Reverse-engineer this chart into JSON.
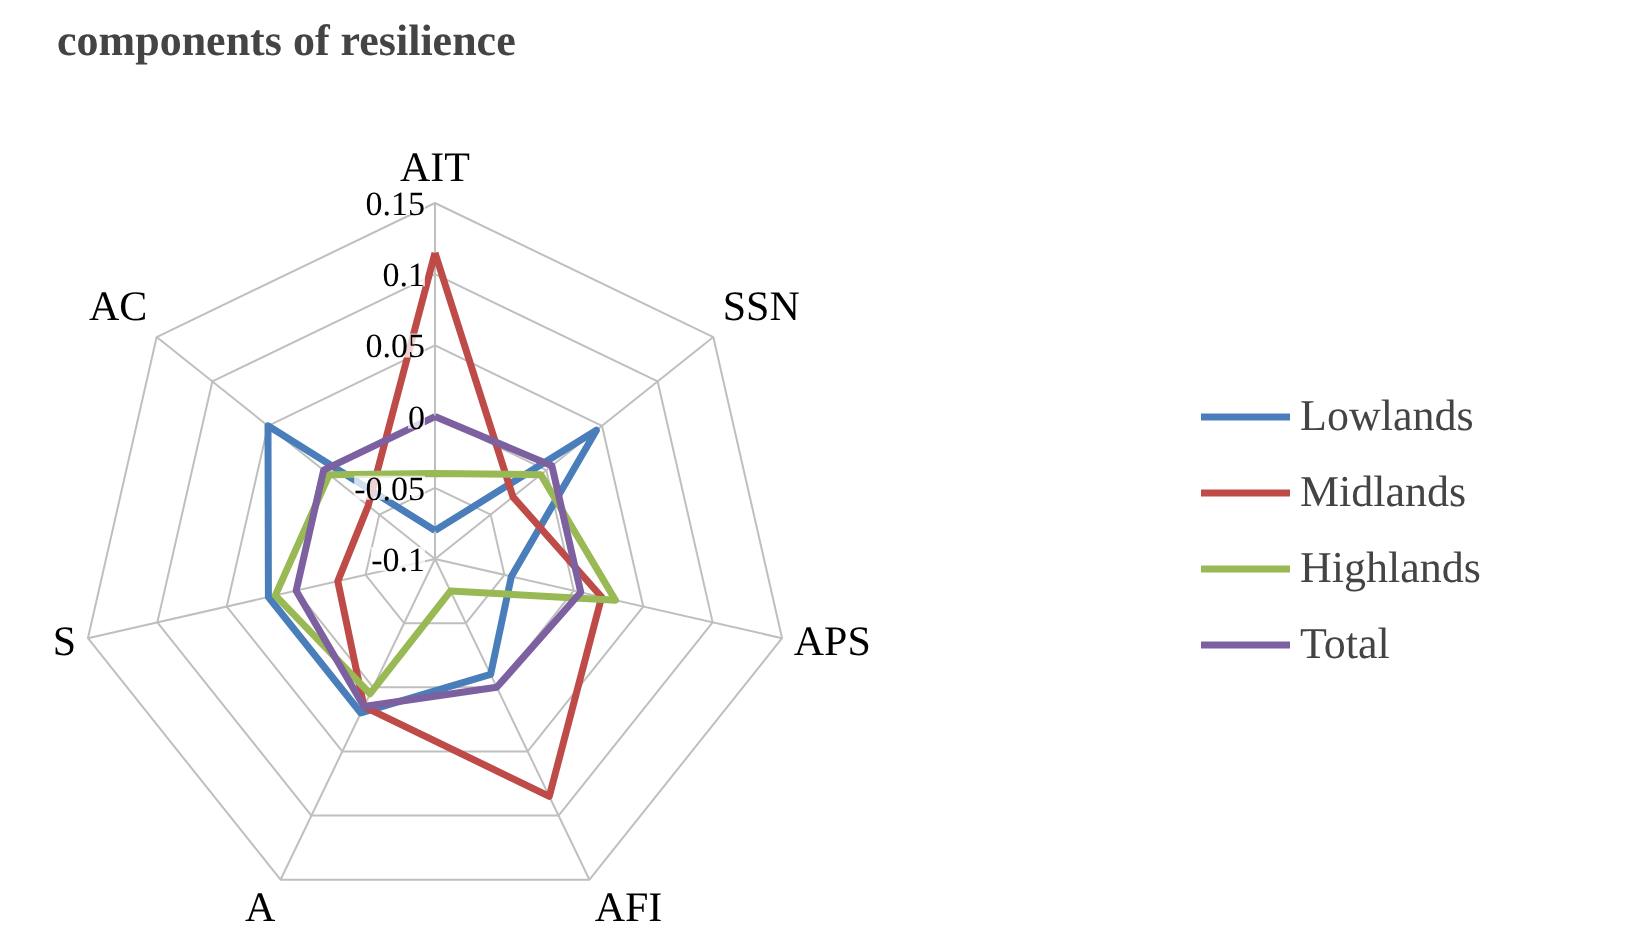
{
  "chart_data": {
    "type": "radar",
    "title": "components of resilience",
    "categories": [
      "AIT",
      "SSN",
      "APS",
      "AFI",
      "A",
      "S",
      "AC"
    ],
    "series": [
      {
        "name": "Lowlands",
        "color": "#4a7ebb",
        "values": [
          -0.08,
          0.045,
          -0.045,
          -0.01,
          0.02,
          0.02,
          0.05
        ]
      },
      {
        "name": "Midlands",
        "color": "#be4b48",
        "values": [
          0.115,
          -0.03,
          0.02,
          0.085,
          0.015,
          -0.03,
          -0.04
        ]
      },
      {
        "name": "Highlands",
        "color": "#98b954",
        "values": [
          -0.04,
          -0.005,
          0.03,
          -0.075,
          0.005,
          0.015,
          -0.005
        ]
      },
      {
        "name": "Total",
        "color": "#7d60a0",
        "values": [
          0.0,
          0.005,
          0.005,
          0.0,
          0.015,
          0.0,
          0.0
        ]
      }
    ],
    "ylim": [
      -0.1,
      0.15
    ],
    "yticks": [
      -0.1,
      -0.05,
      0,
      0.05,
      0.1,
      0.15
    ],
    "grid": true,
    "legend": "right",
    "marker": "none"
  }
}
